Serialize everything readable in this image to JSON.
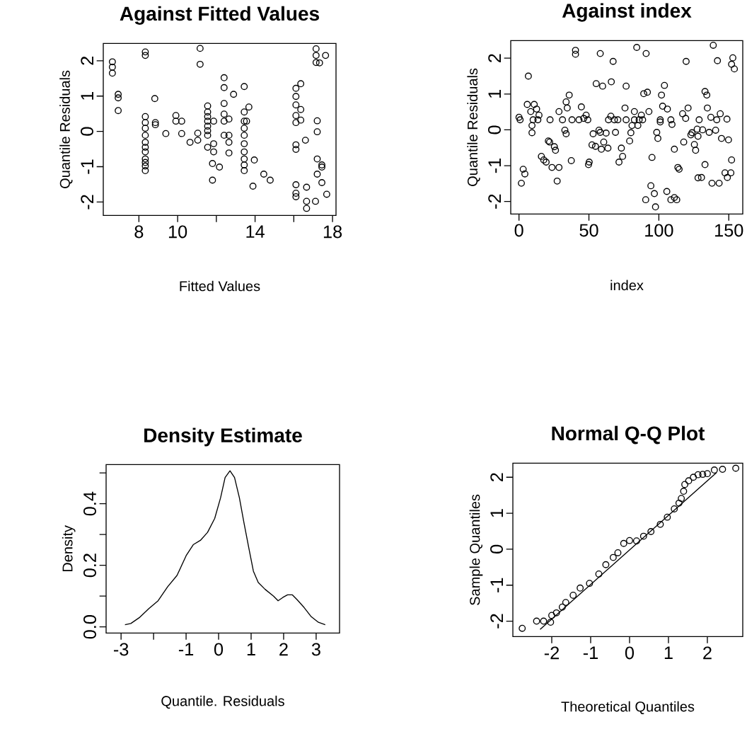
{
  "chart_data": [
    {
      "type": "scatter",
      "title": "Against Fitted Values",
      "xlabel": "Fitted Values",
      "ylabel": "Quantile Residuals",
      "marker": "circle",
      "xlim": [
        6.16,
        18.18
      ],
      "ylim": [
        -2.38,
        2.49
      ],
      "xticks": [
        8,
        10,
        {
          "value": 12,
          "label": null
        },
        14,
        {
          "value": 16,
          "label": null
        },
        18
      ],
      "yticks": [
        -2,
        -1,
        0,
        1,
        2
      ],
      "series": [
        {
          "color": "#000000",
          "x": [
            6.63,
            6.63,
            6.63,
            6.93,
            6.93,
            6.93,
            8.33,
            8.33,
            8.33,
            8.33,
            8.33,
            8.33,
            8.33,
            8.33,
            8.33,
            8.33,
            8.33,
            8.33,
            8.33,
            8.82,
            8.85,
            8.85,
            9.39,
            9.91,
            9.91,
            10.21,
            10.21,
            10.64,
            11.04,
            11.04,
            11.16,
            11.16,
            11.55,
            11.55,
            11.55,
            11.55,
            11.55,
            11.55,
            11.55,
            11.55,
            11.86,
            11.86,
            11.86,
            11.8,
            11.8,
            12.16,
            12.4,
            12.4,
            12.4,
            12.4,
            12.4,
            12.4,
            12.65,
            12.65,
            12.65,
            12.65,
            12.89,
            13.44,
            13.44,
            13.44,
            13.44,
            13.44,
            13.44,
            13.44,
            13.44,
            13.44,
            13.44,
            13.68,
            13.56,
            13.96,
            13.89,
            14.45,
            14.78,
            16.11,
            16.11,
            16.11,
            16.11,
            16.11,
            16.11,
            16.11,
            16.36,
            16.36,
            16.36,
            16.6,
            17.21,
            17.21,
            17.21,
            17.45,
            17.45,
            17.21,
            17.45,
            17.7,
            16.11,
            16.11,
            16.11,
            16.66,
            16.66,
            16.66,
            17.12,
            17.15,
            17.15,
            17.15,
            17.64,
            17.33
          ],
          "values": [
            1.97,
            1.82,
            1.65,
            1.05,
            0.95,
            0.59,
            2.25,
            2.15,
            0.42,
            0.25,
            0.09,
            -0.11,
            -0.31,
            -0.45,
            -0.58,
            -0.78,
            -0.88,
            -0.98,
            -1.11,
            0.93,
            0.25,
            0.19,
            -0.06,
            0.45,
            0.29,
            0.29,
            -0.06,
            -0.31,
            -0.05,
            -0.25,
            2.35,
            1.9,
            0.72,
            0.55,
            0.42,
            0.29,
            0.15,
            0.02,
            -0.11,
            -0.45,
            0.29,
            -0.35,
            -0.58,
            -0.91,
            -1.38,
            -1.01,
            1.52,
            1.24,
            0.79,
            0.49,
            0.29,
            -0.11,
            0.35,
            -0.11,
            -0.31,
            -0.61,
            1.05,
            1.27,
            0.55,
            0.29,
            0.09,
            -0.11,
            -0.35,
            -0.58,
            -0.78,
            -0.95,
            -1.11,
            0.69,
            0.29,
            -0.81,
            -1.55,
            -1.21,
            -1.38,
            1.22,
            0.99,
            0.75,
            0.45,
            0.25,
            -0.38,
            -0.51,
            1.35,
            0.62,
            0.32,
            -0.25,
            0.3,
            -0.01,
            -0.78,
            -0.95,
            -1.01,
            -1.21,
            -1.45,
            -1.78,
            -1.51,
            -1.75,
            -1.85,
            -1.58,
            -1.98,
            -2.18,
            -1.98,
            2.34,
            2.15,
            1.95,
            2.15,
            1.94
          ]
        }
      ]
    },
    {
      "type": "scatter",
      "title": "Against  index",
      "xlabel": "index",
      "ylabel": "Quantile Residuals",
      "marker": "circle",
      "xlim": [
        -5.9,
        160
      ],
      "ylim": [
        -2.35,
        2.49
      ],
      "xticks": [
        0,
        50,
        100,
        150
      ],
      "yticks": [
        -2,
        -1,
        0,
        1,
        2
      ],
      "series": [
        {
          "color": "#000000",
          "x": [
            0,
            0.8,
            5.9,
            6.7,
            8.4,
            10.1,
            10.9,
            12.6,
            14.3,
            13.5,
            9.3,
            9.3,
            3.0,
            4.2,
            1.7,
            21.0,
            21.9,
            25.3,
            26.1,
            16.0,
            17.7,
            19.4,
            23.6,
            28.6,
            27.3,
            22.2,
            28.6,
            31.1,
            33.7,
            35.9,
            34.5,
            32.8,
            33.7,
            37.4,
            37.9,
            40.4,
            40.4,
            42.9,
            44.6,
            46.3,
            48.0,
            49.2,
            50.2,
            49.7,
            53.0,
            52.2,
            54.7,
            57.2,
            58.1,
            58.9,
            60.6,
            63.6,
            62.3,
            58.1,
            55.2,
            59.8,
            66.0,
            67.3,
            64.0,
            65.7,
            68.2,
            69.0,
            70.7,
            71.5,
            74.1,
            73.2,
            75.8,
            76.6,
            76.6,
            79.1,
            80.0,
            80.8,
            82.5,
            82.5,
            85.0,
            85.9,
            87.5,
            88.4,
            84.2,
            90.9,
            92.9,
            89.2,
            91.8,
            95.1,
            94.3,
            96.8,
            90.6,
            97.6,
            98.5,
            99.3,
            101.0,
            101.0,
            101.9,
            102.7,
            104.0,
            106.1,
            108.6,
            109.4,
            111.1,
            105.7,
            108.6,
            111.1,
            112.8,
            113.6,
            114.5,
            117.8,
            117.0,
            119.2,
            120.9,
            119.5,
            122.9,
            123.7,
            125.4,
            126.3,
            127.4,
            128.8,
            128.0,
            131.3,
            133.0,
            134.3,
            134.7,
            133.0,
            130.5,
            128.0,
            136.0,
            137.2,
            140.6,
            141.4,
            143.9,
            144.8,
            148.7,
            149.8,
            138.0,
            143.1,
            138.9,
            141.9,
            147.3,
            149.0,
            152.0,
            151.5,
            152.9,
            152.0,
            154.0
          ],
          "values": [
            0.35,
            0.28,
            0.71,
            1.5,
            0.51,
            0.28,
            0.71,
            0.58,
            0.41,
            0.28,
            0.12,
            -0.08,
            -1.1,
            -1.23,
            -1.49,
            -0.31,
            -0.34,
            -0.47,
            -0.57,
            -0.74,
            -0.84,
            -0.9,
            -1.05,
            -1.05,
            -1.43,
            0.28,
            0.51,
            0.28,
            0.78,
            0.97,
            0.61,
            -0.01,
            -0.11,
            -0.86,
            0.28,
            2.22,
            2.11,
            0.28,
            0.64,
            0.32,
            0.41,
            0.28,
            -0.9,
            -0.97,
            -0.11,
            -0.42,
            -0.46,
            -0.01,
            -0.07,
            -0.54,
            -0.34,
            -0.51,
            -0.09,
            2.13,
            1.29,
            1.22,
            1.34,
            1.91,
            0.28,
            0.38,
            0.28,
            -0.07,
            0.28,
            -0.9,
            -0.74,
            -0.51,
            0.61,
            0.28,
            1.22,
            -0.31,
            -0.08,
            0.12,
            0.28,
            0.51,
            0.12,
            0.28,
            0.41,
            0.28,
            2.3,
            2.13,
            0.51,
            1.01,
            1.05,
            -0.77,
            -1.56,
            -1.78,
            -1.95,
            -2.15,
            -0.07,
            -0.24,
            0.28,
            0.22,
            0.97,
            0.66,
            1.24,
            0.58,
            0.28,
            0.15,
            -0.54,
            -1.72,
            -1.95,
            -1.89,
            -1.95,
            -1.05,
            -1.1,
            -0.34,
            0.45,
            0.32,
            0.61,
            1.91,
            -0.14,
            -0.08,
            -0.41,
            -0.57,
            0.02,
            0.28,
            -0.18,
            0.0,
            1.07,
            0.97,
            0.61,
            -0.97,
            -1.33,
            -1.34,
            -0.07,
            0.35,
            -0.01,
            0.28,
            0.45,
            -0.24,
            0.3,
            -0.28,
            -1.49,
            -1.49,
            2.36,
            1.93,
            -1.2,
            -1.33,
            -0.84,
            -1.2,
            2.01,
            1.83,
            1.7
          ]
        }
      ]
    },
    {
      "type": "line",
      "title": "Density Estimate",
      "xlabel": "Quantile. Residuals",
      "ylabel": "Density",
      "xlim": [
        -3.46,
        3.72
      ],
      "ylim": [
        -0.02,
        0.527
      ],
      "xticks": [
        -3,
        {
          "value": -2,
          "label": null
        },
        -1,
        0,
        1,
        2,
        3
      ],
      "yticks": [
        {
          "value": 0,
          "label": "0.0"
        },
        {
          "value": 0.1,
          "label": null
        },
        {
          "value": 0.2,
          "label": "0.2"
        },
        {
          "value": 0.3,
          "label": null
        },
        {
          "value": 0.4,
          "label": "0.4"
        },
        {
          "value": 0.5,
          "label": null
        }
      ],
      "series": [
        {
          "color": "#000000",
          "x": [
            -2.88,
            -2.7,
            -2.44,
            -2.15,
            -1.86,
            -1.57,
            -1.28,
            -0.99,
            -0.78,
            -0.56,
            -0.34,
            -0.12,
            0.06,
            0.2,
            0.35,
            0.49,
            0.64,
            0.78,
            0.93,
            1.07,
            1.22,
            1.43,
            1.69,
            1.83,
            1.98,
            2.12,
            2.27,
            2.41,
            2.63,
            2.85,
            3.07,
            3.28
          ],
          "values": [
            0.007,
            0.011,
            0.03,
            0.059,
            0.085,
            0.13,
            0.167,
            0.233,
            0.267,
            0.281,
            0.307,
            0.352,
            0.419,
            0.485,
            0.507,
            0.485,
            0.419,
            0.338,
            0.256,
            0.181,
            0.144,
            0.122,
            0.1,
            0.085,
            0.096,
            0.104,
            0.104,
            0.089,
            0.063,
            0.033,
            0.015,
            0.007
          ]
        }
      ]
    },
    {
      "type": "scatter",
      "title": "Normal Q-Q Plot",
      "xlabel": "Theoretical Quantiles",
      "ylabel": "Sample Quantiles",
      "xlim": [
        -3.0,
        2.91
      ],
      "ylim": [
        -2.43,
        2.39
      ],
      "xticks": [
        -2,
        -1,
        0,
        1,
        2
      ],
      "yticks": [
        -2,
        -1,
        0,
        1,
        2
      ],
      "series": [
        {
          "color": "#000000",
          "marker": "circle",
          "x": [
            -2.76,
            -2.39,
            -2.21,
            -2.03,
            -2.0,
            -1.88,
            -1.73,
            -1.64,
            -1.45,
            -1.27,
            -1.03,
            -0.79,
            -0.61,
            -0.42,
            -0.3,
            -0.15,
            0.0,
            0.18,
            0.36,
            0.55,
            0.79,
            0.97,
            1.15,
            1.27,
            1.33,
            1.39,
            1.42,
            1.52,
            1.64,
            1.76,
            1.88,
            2.0,
            2.18,
            2.39,
            2.73
          ],
          "values": [
            -2.2,
            -2.0,
            -2.0,
            -2.03,
            -1.84,
            -1.77,
            -1.61,
            -1.48,
            -1.28,
            -1.08,
            -0.95,
            -0.69,
            -0.43,
            -0.23,
            -0.1,
            0.16,
            0.24,
            0.23,
            0.36,
            0.49,
            0.69,
            0.89,
            1.12,
            1.28,
            1.41,
            1.61,
            1.8,
            1.9,
            2.0,
            2.07,
            2.08,
            2.1,
            2.2,
            2.22,
            2.25
          ]
        },
        {
          "type": "line",
          "marker": "none",
          "color": "#000000",
          "x": [
            -2.3,
            2.24
          ],
          "values": [
            -2.23,
            2.13
          ]
        }
      ]
    }
  ]
}
